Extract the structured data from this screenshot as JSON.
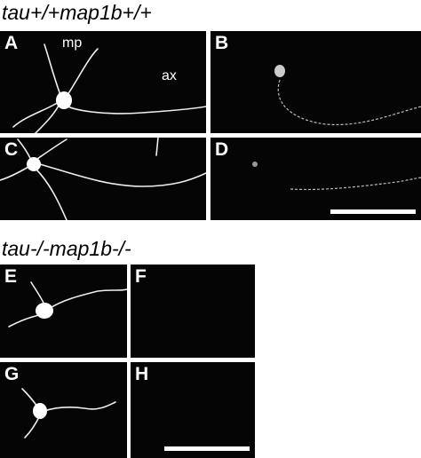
{
  "top_section": {
    "title": "tau+/+map1b+/+",
    "panels": [
      {
        "label": "A",
        "annotations": [
          "mp",
          "ax"
        ]
      },
      {
        "label": "B"
      },
      {
        "label": "C"
      },
      {
        "label": "D"
      }
    ]
  },
  "bottom_section": {
    "title": "tau-/-map1b-/-",
    "panels": [
      {
        "label": "E"
      },
      {
        "label": "F"
      },
      {
        "label": "G"
      },
      {
        "label": "H"
      }
    ]
  }
}
